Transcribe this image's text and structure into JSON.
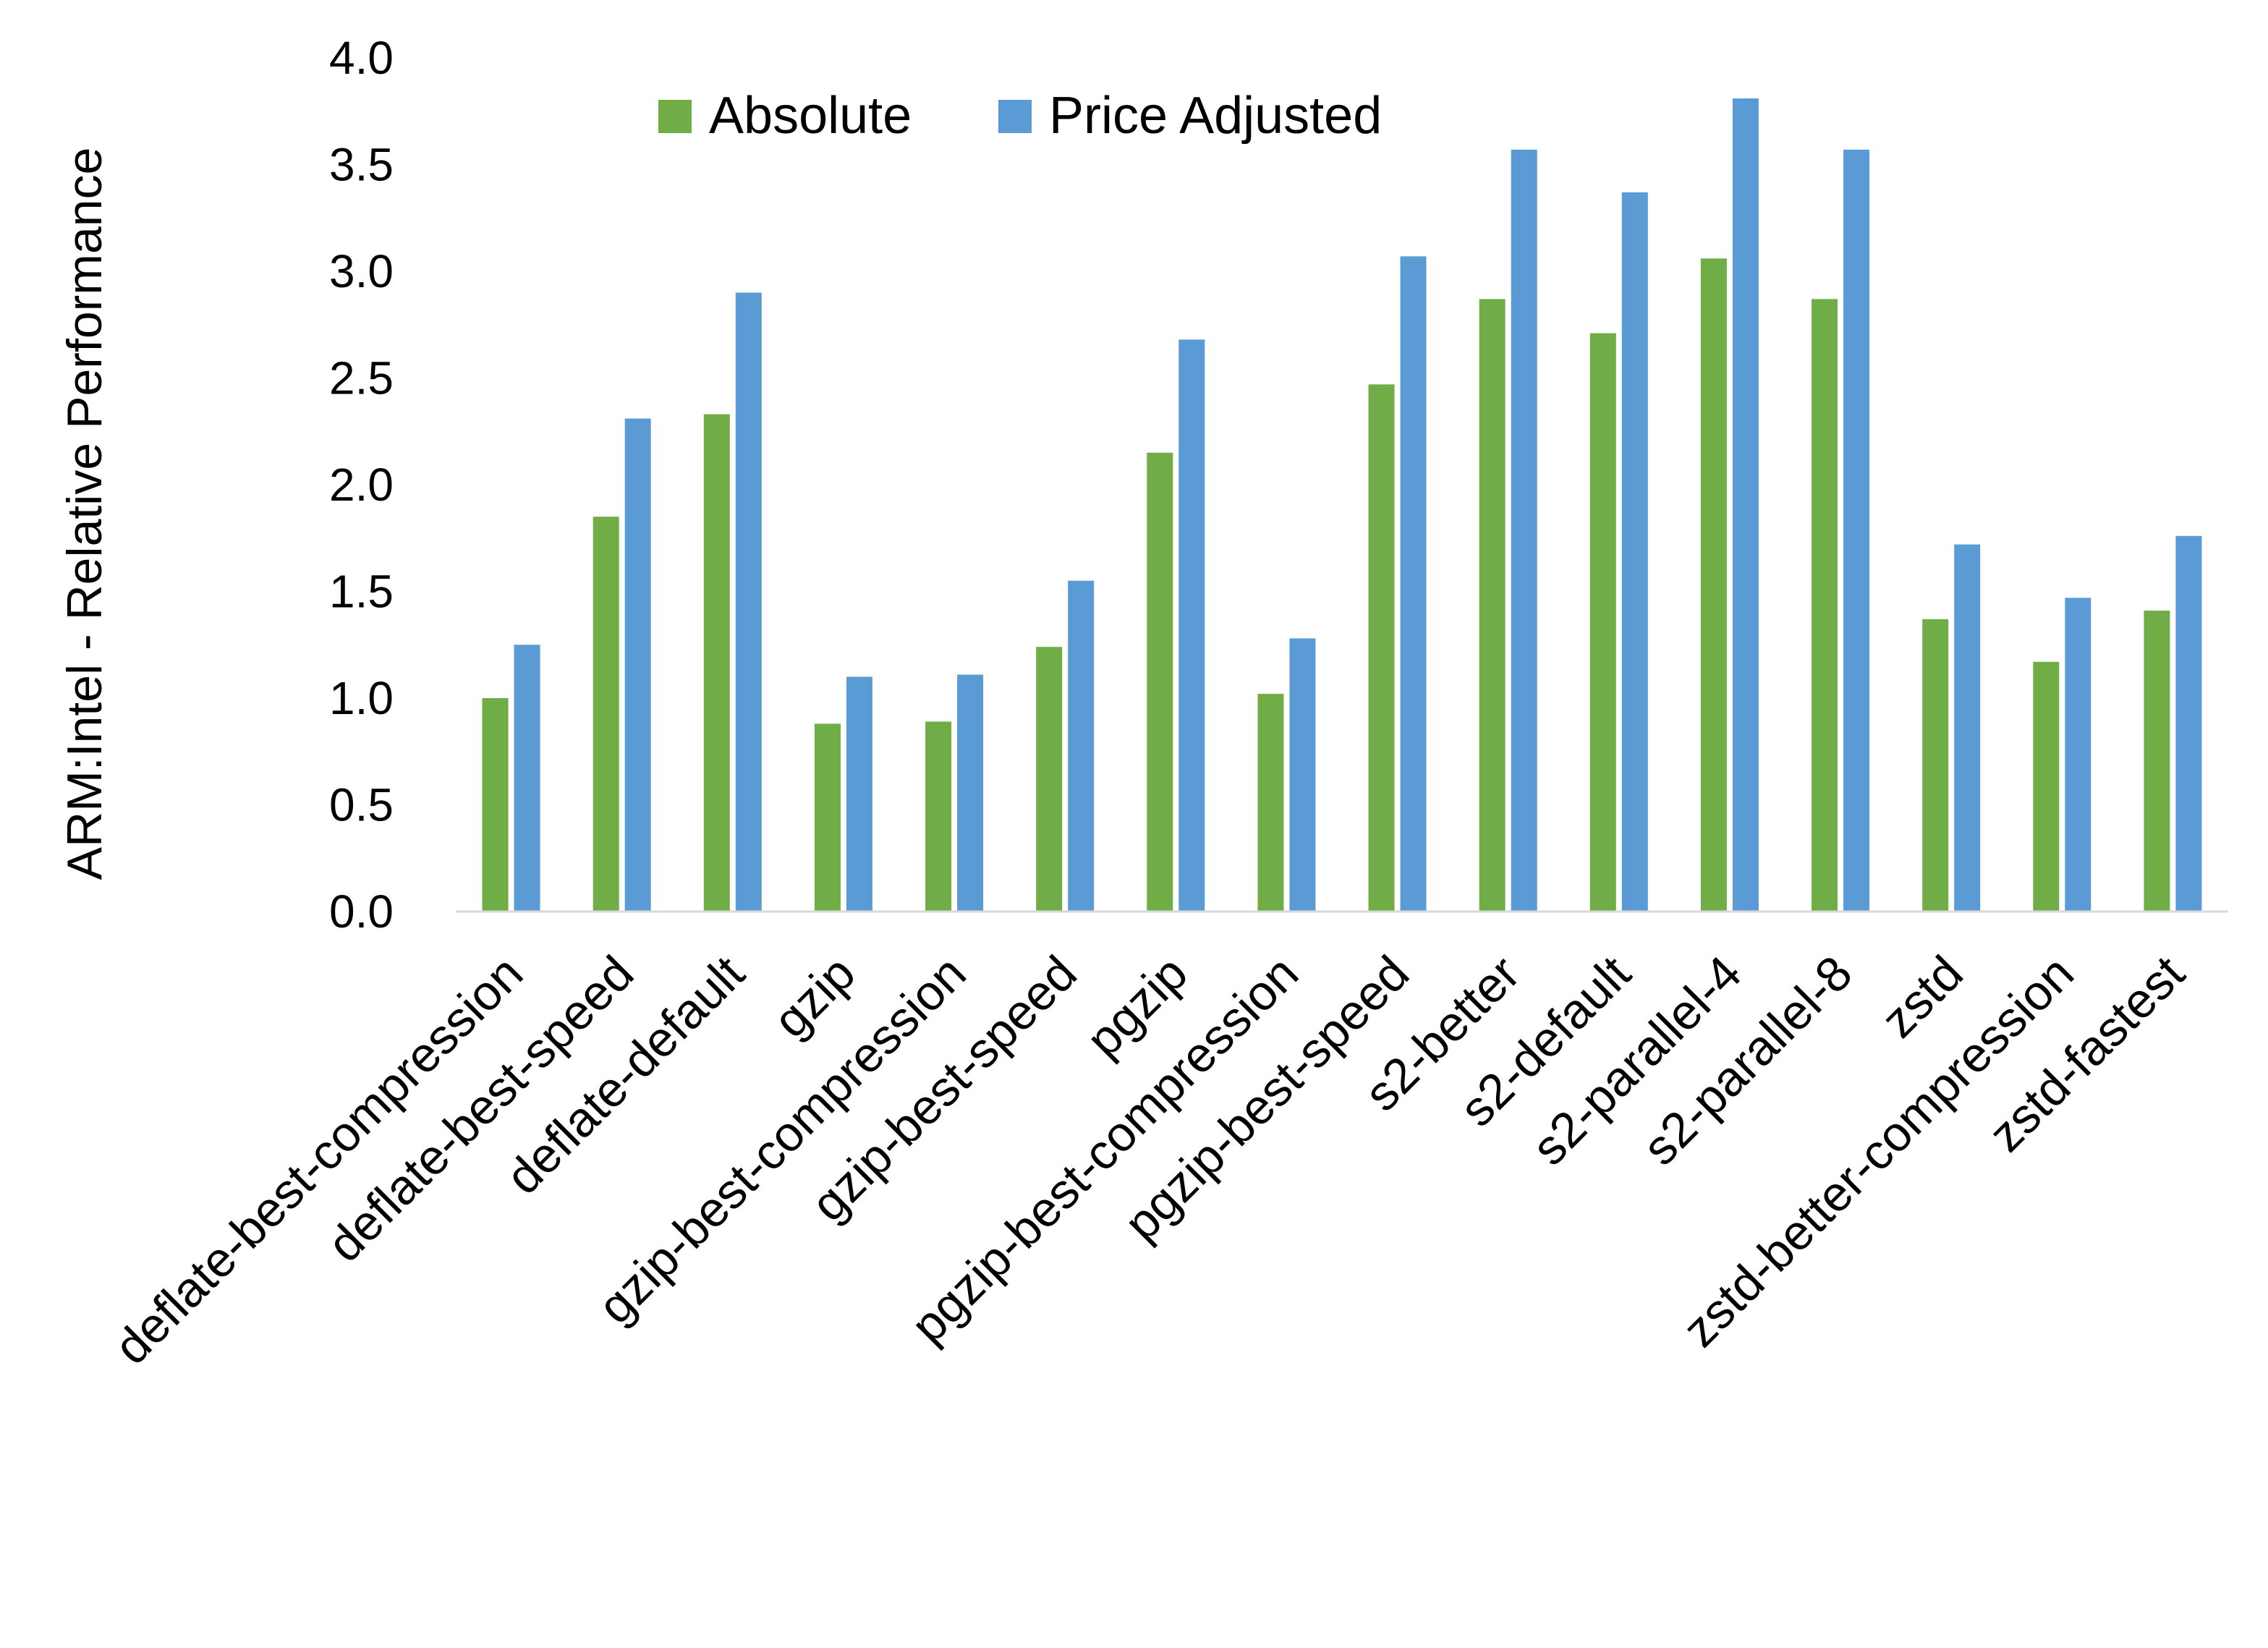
{
  "chart_data": {
    "type": "bar",
    "title": "",
    "xlabel": "",
    "ylabel": "ARM:Intel - Relative Performance",
    "ylim": [
      0,
      4.0
    ],
    "yticks": [
      "0.0",
      "0.5",
      "1.0",
      "1.5",
      "2.0",
      "2.5",
      "3.0",
      "3.5",
      "4.0"
    ],
    "grid": false,
    "legend_position": "top-center",
    "categories": [
      "deflate-best-compression",
      "deflate-best-speed",
      "deflate-default",
      "gzip",
      "gzip-best-compression",
      "gzip-best-speed",
      "pgzip",
      "pgzip-best-compression",
      "pgzip-best-speed",
      "s2-better",
      "s2-default",
      "s2-parallel-4",
      "s2-parallel-8",
      "zstd",
      "zstd-better-compression",
      "zstd-fastest"
    ],
    "series": [
      {
        "name": "Absolute",
        "color": "#70AD47",
        "values": [
          1.0,
          1.85,
          2.33,
          0.88,
          0.89,
          1.24,
          2.15,
          1.02,
          2.47,
          2.87,
          2.71,
          3.06,
          2.87,
          1.37,
          1.17,
          1.41
        ]
      },
      {
        "name": "Price Adjusted",
        "color": "#5B9BD5",
        "values": [
          1.25,
          2.31,
          2.9,
          1.1,
          1.11,
          1.55,
          2.68,
          1.28,
          3.07,
          3.57,
          3.37,
          3.81,
          3.57,
          1.72,
          1.47,
          1.76
        ]
      }
    ]
  }
}
